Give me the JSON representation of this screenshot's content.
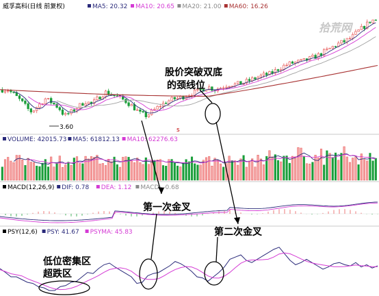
{
  "title": "威孚高科(日线 前复权)",
  "watermark": "拾荒网",
  "colors": {
    "up": "#e85a5a",
    "down": "#1a9e3a",
    "ma5": "#2a2a7a",
    "ma10": "#d43ad4",
    "ma20": "#a0a0a0",
    "ma60": "#a83232",
    "dif": "#2a2a7a",
    "dea": "#d43ad4",
    "psy": "#2a2a7a",
    "psyma": "#d43ad4",
    "grid": "#d9d9d9",
    "header_bg": "#ffffff"
  },
  "panels": {
    "price": {
      "legend": [
        {
          "label": "MA5: 20.32",
          "color": "#2a2a7a"
        },
        {
          "label": "MA10: 20.65",
          "color": "#d43ad4"
        },
        {
          "label": "MA20: 21.00",
          "color": "#8a8a8a"
        },
        {
          "label": "MA60: 16.26",
          "color": "#a83232"
        }
      ],
      "low_label": "3.60"
    },
    "volume": {
      "legend": [
        {
          "label": "VOLUME: 42015.73",
          "color": "#2a2a7a"
        },
        {
          "label": "MA5: 61812.13",
          "color": "#2a2a7a"
        },
        {
          "label": "MA10: 62276.63",
          "color": "#d43ad4"
        }
      ]
    },
    "macd": {
      "legend": [
        {
          "label": "MACD(12,26,9)",
          "color": "#000000"
        },
        {
          "label": "DIF: 0.78",
          "color": "#2a2a7a"
        },
        {
          "label": "DEA: 1.12",
          "color": "#d43ad4"
        },
        {
          "label": "MACD: -0.68",
          "color": "#8a8a8a"
        }
      ]
    },
    "psy": {
      "legend": [
        {
          "label": "PSY(12,6)",
          "color": "#000000"
        },
        {
          "label": "PSY: 41.67",
          "color": "#2a2a7a"
        },
        {
          "label": "PSYMA: 45.83",
          "color": "#d43ad4"
        }
      ]
    }
  },
  "annotations": {
    "neckline_line1": "股价突破双底",
    "neckline_line2": "的颈线位",
    "first_cross": "第一次金叉",
    "second_cross": "第二次金叉",
    "low_zone": "低位密集区",
    "oversold": "超跌区"
  },
  "chart_data": {
    "type": "candlestick",
    "series": [
      {
        "name": "MA5",
        "values": [
          20.32
        ]
      },
      {
        "name": "MA10",
        "values": [
          20.65
        ]
      },
      {
        "name": "MA20",
        "values": [
          21.0
        ]
      },
      {
        "name": "MA60",
        "values": [
          16.26
        ]
      },
      {
        "name": "VOLUME",
        "values": [
          42015.73
        ]
      },
      {
        "name": "DIF",
        "values": [
          0.78
        ]
      },
      {
        "name": "DEA",
        "values": [
          1.12
        ]
      },
      {
        "name": "MACD",
        "values": [
          -0.68
        ]
      },
      {
        "name": "PSY",
        "values": [
          41.67
        ]
      },
      {
        "name": "PSYMA",
        "values": [
          45.83
        ]
      }
    ],
    "price_path": [
      [
        0,
        0.62
      ],
      [
        10,
        0.62
      ],
      [
        20,
        0.58
      ],
      [
        30,
        0.53
      ],
      [
        40,
        0.47
      ],
      [
        45,
        0.45
      ],
      [
        55,
        0.5
      ],
      [
        65,
        0.55
      ],
      [
        75,
        0.52
      ],
      [
        85,
        0.48
      ],
      [
        93,
        0.42
      ],
      [
        103,
        0.45
      ],
      [
        113,
        0.49
      ],
      [
        123,
        0.53
      ],
      [
        133,
        0.51
      ],
      [
        143,
        0.56
      ],
      [
        153,
        0.6
      ],
      [
        163,
        0.58
      ],
      [
        173,
        0.56
      ],
      [
        183,
        0.53
      ],
      [
        193,
        0.49
      ],
      [
        203,
        0.44
      ],
      [
        213,
        0.42
      ],
      [
        223,
        0.46
      ],
      [
        233,
        0.5
      ],
      [
        243,
        0.53
      ],
      [
        253,
        0.55
      ],
      [
        263,
        0.56
      ],
      [
        273,
        0.58
      ],
      [
        283,
        0.6
      ],
      [
        293,
        0.62
      ],
      [
        303,
        0.64
      ],
      [
        313,
        0.62
      ],
      [
        323,
        0.64
      ],
      [
        333,
        0.66
      ],
      [
        343,
        0.66
      ],
      [
        353,
        0.67
      ],
      [
        363,
        0.69
      ],
      [
        373,
        0.71
      ],
      [
        383,
        0.73
      ],
      [
        393,
        0.74
      ],
      [
        403,
        0.77
      ],
      [
        413,
        0.8
      ],
      [
        423,
        0.82
      ],
      [
        433,
        0.83
      ],
      [
        443,
        0.84
      ],
      [
        453,
        0.86
      ],
      [
        463,
        0.88
      ],
      [
        473,
        0.91
      ],
      [
        483,
        0.94
      ],
      [
        493,
        0.97
      ],
      [
        503,
        0.99
      ],
      [
        513,
        1.02
      ],
      [
        523,
        1.07
      ],
      [
        533,
        1.11
      ],
      [
        541,
        1.15
      ]
    ],
    "psy_path": [
      [
        0,
        0.45
      ],
      [
        8,
        0.38
      ],
      [
        16,
        0.3
      ],
      [
        24,
        0.3
      ],
      [
        32,
        0.25
      ],
      [
        40,
        0.2
      ],
      [
        48,
        0.18
      ],
      [
        56,
        0.12
      ],
      [
        64,
        0.1
      ],
      [
        72,
        0.05
      ],
      [
        80,
        0.05
      ],
      [
        88,
        0.12
      ],
      [
        96,
        0.14
      ],
      [
        104,
        0.2
      ],
      [
        112,
        0.22
      ],
      [
        120,
        0.3
      ],
      [
        128,
        0.38
      ],
      [
        136,
        0.36
      ],
      [
        144,
        0.45
      ],
      [
        152,
        0.52
      ],
      [
        160,
        0.55
      ],
      [
        168,
        0.48
      ],
      [
        176,
        0.42
      ],
      [
        184,
        0.36
      ],
      [
        192,
        0.3
      ],
      [
        200,
        0.18
      ],
      [
        208,
        0.2
      ],
      [
        216,
        0.32
      ],
      [
        224,
        0.36
      ],
      [
        232,
        0.38
      ],
      [
        240,
        0.44
      ],
      [
        248,
        0.5
      ],
      [
        256,
        0.58
      ],
      [
        264,
        0.54
      ],
      [
        272,
        0.48
      ],
      [
        280,
        0.4
      ],
      [
        288,
        0.3
      ],
      [
        296,
        0.28
      ],
      [
        304,
        0.22
      ],
      [
        312,
        0.3
      ],
      [
        320,
        0.38
      ],
      [
        328,
        0.48
      ],
      [
        336,
        0.62
      ],
      [
        344,
        0.66
      ],
      [
        352,
        0.7
      ],
      [
        360,
        0.6
      ],
      [
        368,
        0.56
      ],
      [
        376,
        0.62
      ],
      [
        384,
        0.68
      ],
      [
        392,
        0.74
      ],
      [
        400,
        0.8
      ],
      [
        408,
        0.84
      ],
      [
        416,
        0.72
      ],
      [
        424,
        0.6
      ],
      [
        432,
        0.52
      ],
      [
        440,
        0.56
      ],
      [
        448,
        0.62
      ],
      [
        456,
        0.56
      ],
      [
        464,
        0.5
      ],
      [
        472,
        0.44
      ],
      [
        480,
        0.48
      ],
      [
        488,
        0.54
      ],
      [
        496,
        0.56
      ],
      [
        504,
        0.52
      ],
      [
        512,
        0.5
      ],
      [
        520,
        0.56
      ],
      [
        528,
        0.48
      ],
      [
        536,
        0.52
      ],
      [
        544,
        0.46
      ],
      [
        552,
        0.5
      ]
    ]
  }
}
